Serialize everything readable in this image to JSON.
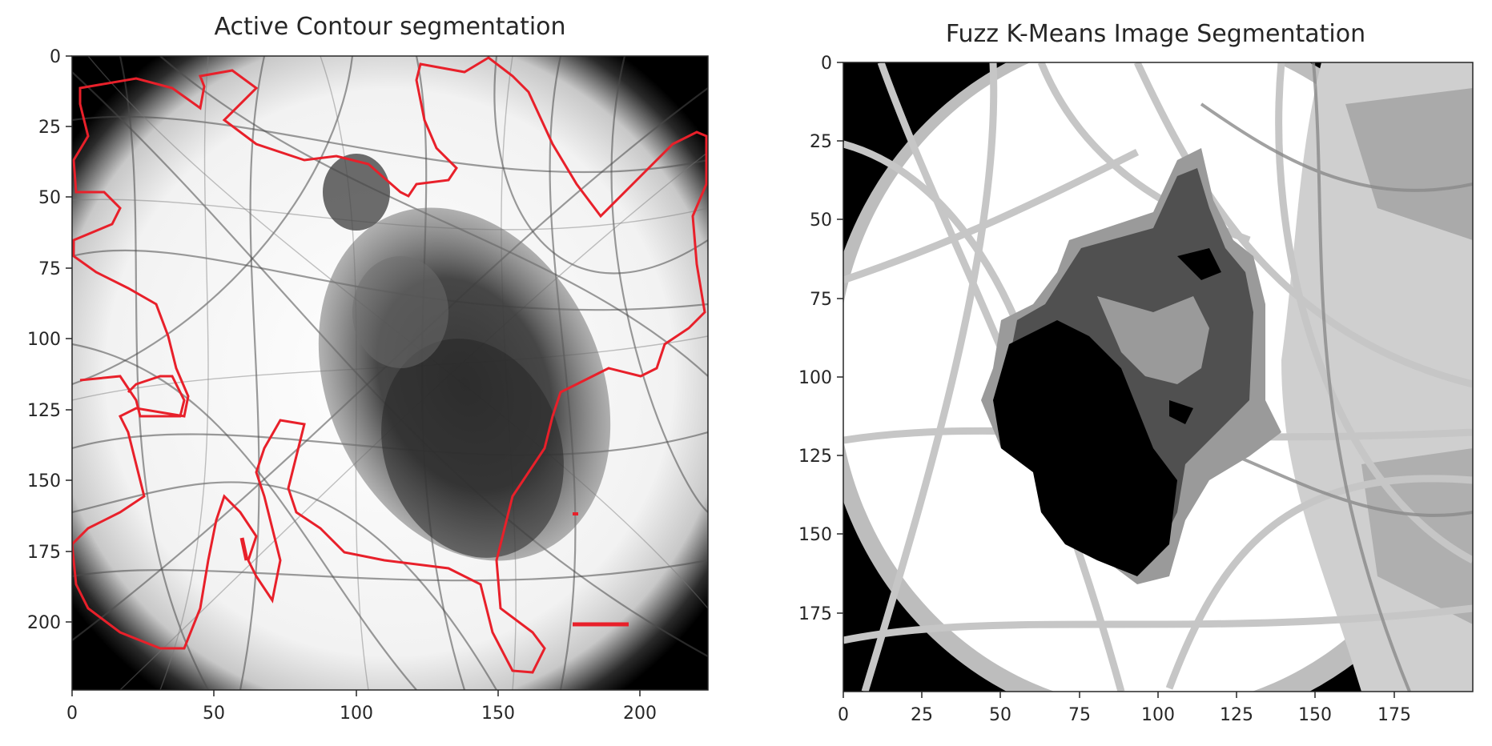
{
  "panels": [
    {
      "title": "Active Contour segmentation",
      "x_ticks": [
        "0",
        "50",
        "100",
        "150",
        "200"
      ],
      "y_ticks": [
        "0",
        "25",
        "50",
        "75",
        "100",
        "125",
        "150",
        "175",
        "200"
      ],
      "xlim": [
        0,
        224
      ],
      "ylim": [
        224,
        0
      ],
      "contour_color": "#e8202a"
    },
    {
      "title": "Fuzz K-Means Image Segmentation",
      "x_ticks": [
        "0",
        "25",
        "50",
        "75",
        "100",
        "125",
        "150",
        "175"
      ],
      "y_ticks": [
        "0",
        "25",
        "50",
        "75",
        "100",
        "125",
        "150",
        "175"
      ],
      "xlim": [
        0,
        200
      ],
      "ylim": [
        200,
        0
      ],
      "cluster_colors": [
        "#000000",
        "#505050",
        "#9a9a9a",
        "#cdcdcd",
        "#ffffff"
      ]
    }
  ]
}
